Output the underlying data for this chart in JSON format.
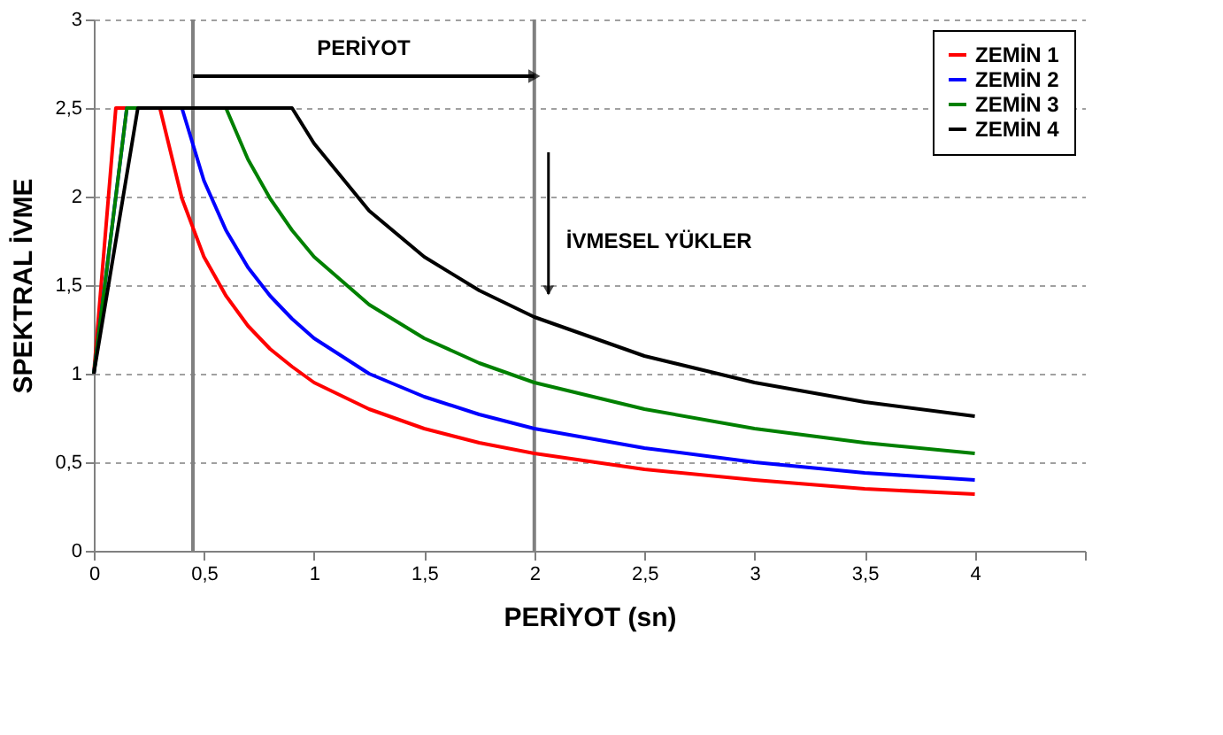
{
  "chart_data": {
    "type": "line",
    "xlabel": "PERİYOT (sn)",
    "ylabel": "SPEKTRAL İVME",
    "series": [
      {
        "name": "ZEMİN 1",
        "color": "#ff0000",
        "x": [
          0,
          0.1,
          0.3,
          0.4,
          0.5,
          0.6,
          0.7,
          0.8,
          0.9,
          1.0,
          1.25,
          1.5,
          1.75,
          2.0,
          2.5,
          3.0,
          3.5,
          4.0
        ],
        "values": [
          1,
          2.5,
          2.5,
          1.99,
          1.66,
          1.44,
          1.27,
          1.14,
          1.04,
          0.95,
          0.8,
          0.69,
          0.61,
          0.55,
          0.46,
          0.4,
          0.35,
          0.32
        ]
      },
      {
        "name": "ZEMİN 2",
        "color": "#0000ff",
        "x": [
          0,
          0.15,
          0.4,
          0.5,
          0.6,
          0.7,
          0.8,
          0.9,
          1.0,
          1.25,
          1.5,
          1.75,
          2.0,
          2.5,
          3.0,
          3.5,
          4.0
        ],
        "values": [
          1,
          2.5,
          2.5,
          2.09,
          1.81,
          1.6,
          1.44,
          1.31,
          1.2,
          1.0,
          0.87,
          0.77,
          0.69,
          0.58,
          0.5,
          0.44,
          0.4
        ]
      },
      {
        "name": "ZEMİN 3",
        "color": "#008000",
        "x": [
          0,
          0.15,
          0.6,
          0.7,
          0.8,
          0.9,
          1.0,
          1.25,
          1.5,
          1.75,
          2.0,
          2.5,
          3.0,
          3.5,
          4.0
        ],
        "values": [
          1,
          2.5,
          2.5,
          2.21,
          1.99,
          1.81,
          1.66,
          1.39,
          1.2,
          1.06,
          0.95,
          0.8,
          0.69,
          0.61,
          0.55
        ]
      },
      {
        "name": "ZEMİN 4",
        "color": "#000000",
        "x": [
          0,
          0.2,
          0.9,
          1.0,
          1.25,
          1.5,
          1.75,
          2.0,
          2.5,
          3.0,
          3.5,
          4.0
        ],
        "values": [
          1,
          2.5,
          2.5,
          2.3,
          1.92,
          1.66,
          1.47,
          1.32,
          1.1,
          0.95,
          0.84,
          0.76
        ]
      }
    ],
    "xlim": [
      0,
      4.5
    ],
    "xticks": [
      0,
      {
        "value": 0.5,
        "label": "0,5"
      },
      1,
      {
        "value": 1.5,
        "label": "1,5"
      },
      2,
      {
        "value": 2.5,
        "label": "2,5"
      },
      3,
      {
        "value": 3.5,
        "label": "3,5"
      },
      4,
      {
        "value": 4.5,
        "label": null
      }
    ],
    "ylim": [
      0,
      3
    ],
    "yticks": [
      0,
      {
        "value": 0.5,
        "label": "0,5"
      },
      1,
      {
        "value": 1.5,
        "label": "1,5"
      },
      2,
      {
        "value": 2.5,
        "label": "2,5"
      },
      3
    ],
    "ref_lines": [
      {
        "axis": "x",
        "value": 0.45,
        "color": "#808080"
      },
      {
        "axis": "x",
        "value": 2.0,
        "color": "#808080"
      }
    ],
    "annotations": [
      "PERİYOT",
      "İVMESEL YÜKLER"
    ],
    "grid": "y",
    "legend": "top right",
    "marker": "none",
    "line_style": "solid"
  }
}
